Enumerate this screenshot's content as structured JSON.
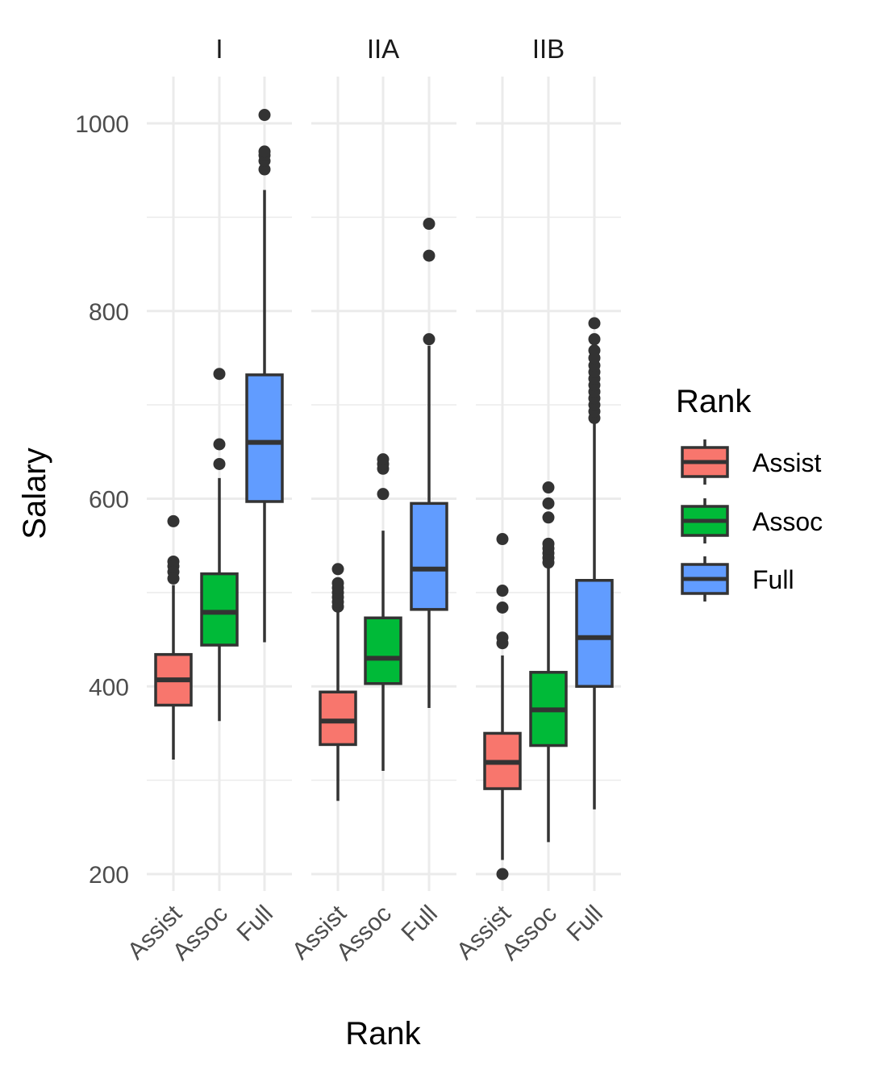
{
  "chart_data": {
    "type": "boxplot",
    "facet_var": "",
    "facets": [
      "I",
      "IIA",
      "IIB"
    ],
    "categories": [
      "Assist",
      "Assoc",
      "Full"
    ],
    "xlabel": "Rank",
    "ylabel": "Salary",
    "ylim": [
      165,
      1055
    ],
    "yticks": [
      200,
      400,
      600,
      800,
      1000
    ],
    "grid": true,
    "legend": {
      "title": "Rank",
      "placement": "right",
      "entries": [
        {
          "label": "Assist",
          "color": "#F8766D"
        },
        {
          "label": "Assoc",
          "color": "#00BA38"
        },
        {
          "label": "Full",
          "color": "#619CFF"
        }
      ]
    },
    "boxes": [
      {
        "facet": "I",
        "category": "Assist",
        "whisker_low": 322,
        "q1": 380,
        "median": 407,
        "q3": 434,
        "whisker_high": 508,
        "outliers": [
          576,
          533,
          528,
          522,
          515
        ]
      },
      {
        "facet": "I",
        "category": "Assoc",
        "whisker_low": 363,
        "q1": 444,
        "median": 479,
        "q3": 520,
        "whisker_high": 622,
        "outliers": [
          637,
          658,
          733
        ]
      },
      {
        "facet": "I",
        "category": "Full",
        "whisker_low": 447,
        "q1": 597,
        "median": 660,
        "q3": 732,
        "whisker_high": 929,
        "outliers": [
          951,
          960,
          966,
          970,
          1009
        ]
      },
      {
        "facet": "IIA",
        "category": "Assist",
        "whisker_low": 278,
        "q1": 338,
        "median": 363,
        "q3": 394,
        "whisker_high": 481,
        "outliers": [
          485,
          490,
          495,
          500,
          505,
          510,
          525
        ]
      },
      {
        "facet": "IIA",
        "category": "Assoc",
        "whisker_low": 310,
        "q1": 403,
        "median": 430,
        "q3": 473,
        "whisker_high": 566,
        "outliers": [
          605,
          632,
          637,
          642
        ]
      },
      {
        "facet": "IIA",
        "category": "Full",
        "whisker_low": 377,
        "q1": 482,
        "median": 525,
        "q3": 595,
        "whisker_high": 763,
        "outliers": [
          770,
          859,
          893
        ]
      },
      {
        "facet": "IIB",
        "category": "Assist",
        "whisker_low": 215,
        "q1": 291,
        "median": 319,
        "q3": 350,
        "whisker_high": 433,
        "outliers": [
          200,
          446,
          452,
          484,
          502,
          557
        ]
      },
      {
        "facet": "IIB",
        "category": "Assoc",
        "whisker_low": 234,
        "q1": 337,
        "median": 375,
        "q3": 415,
        "whisker_high": 527,
        "outliers": [
          532,
          537,
          542,
          547,
          552,
          580,
          595,
          612
        ]
      },
      {
        "facet": "IIB",
        "category": "Full",
        "whisker_low": 269,
        "q1": 400,
        "median": 452,
        "q3": 513,
        "whisker_high": 680,
        "outliers": [
          686,
          693,
          700,
          707,
          714,
          721,
          728,
          735,
          742,
          750,
          758,
          770,
          787
        ]
      }
    ]
  }
}
